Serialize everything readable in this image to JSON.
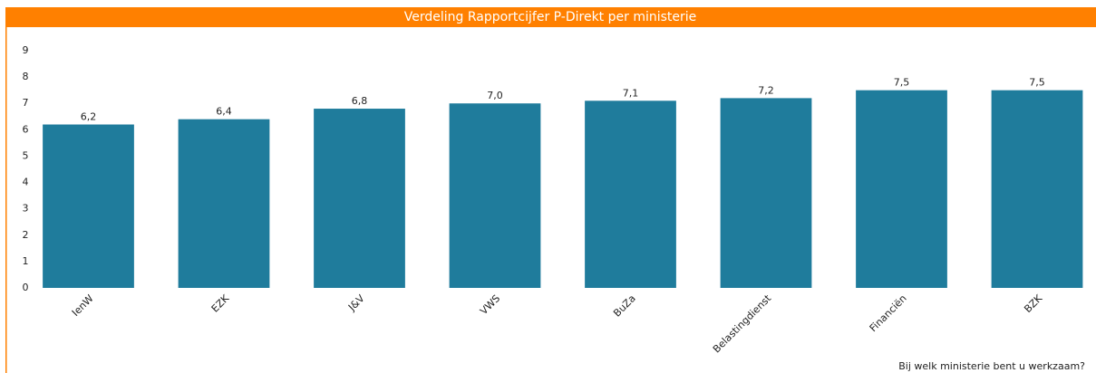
{
  "chart_data": {
    "type": "bar",
    "title": "Verdeling Rapportcijfer P-Direkt per ministerie",
    "x_label": "Bij welk ministerie bent u werkzaam?",
    "categories": [
      "IenW",
      "EZK",
      "J&V",
      "VWS",
      "BuZa",
      "Belastingdienst",
      "Financiën",
      "BZK"
    ],
    "values": [
      6.2,
      6.4,
      6.8,
      7.0,
      7.1,
      7.2,
      7.5,
      7.5
    ],
    "value_labels": [
      "6,2",
      "6,4",
      "6,8",
      "7,0",
      "7,1",
      "7,2",
      "7,5",
      "7,5"
    ],
    "color": "#1f7c9c",
    "ylim": [
      0,
      9
    ],
    "yticks": [
      0,
      1,
      2,
      3,
      4,
      5,
      6,
      7,
      8,
      9
    ],
    "grid": false
  }
}
